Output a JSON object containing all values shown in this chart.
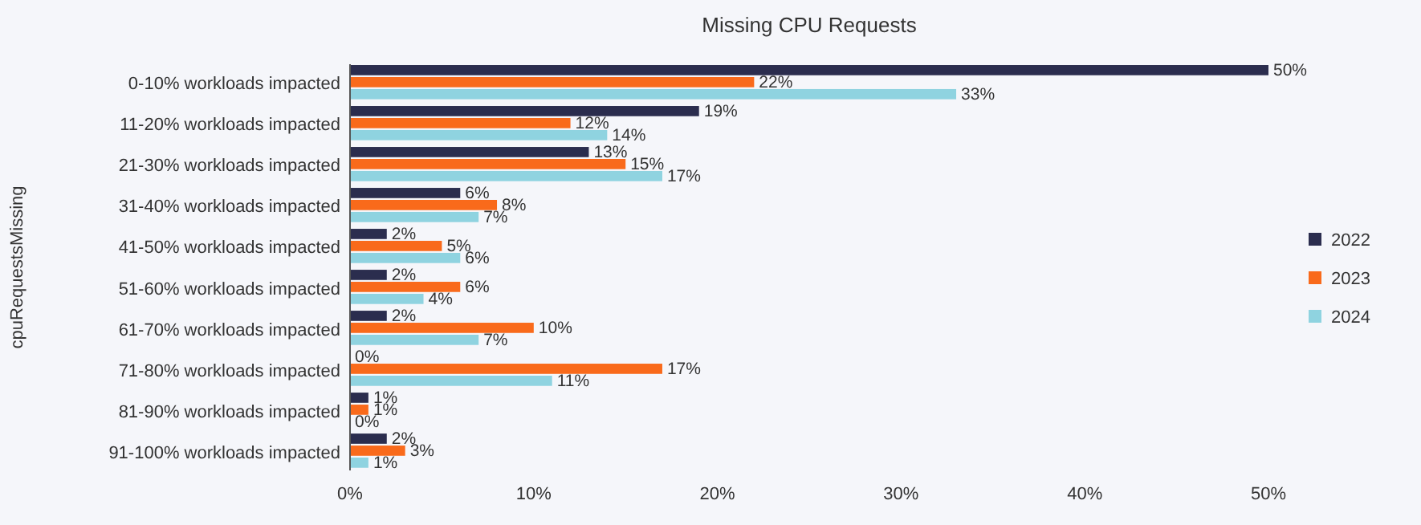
{
  "chart_data": {
    "type": "bar",
    "orientation": "horizontal",
    "title": "Missing CPU Requests",
    "ylabel": "cpuRequestsMissing",
    "categories": [
      "0-10% workloads impacted",
      "11-20% workloads impacted",
      "21-30% workloads impacted",
      "31-40% workloads impacted",
      "41-50% workloads impacted",
      "51-60% workloads impacted",
      "61-70% workloads impacted",
      "71-80% workloads impacted",
      "81-90% workloads impacted",
      "91-100% workloads impacted"
    ],
    "series": [
      {
        "name": "2022",
        "color": "#2b2d4e",
        "values": [
          50,
          19,
          13,
          6,
          2,
          2,
          2,
          0,
          1,
          2
        ],
        "value_labels": [
          "50%",
          "19%",
          "13%",
          "6%",
          "2%",
          "2%",
          "2%",
          "0%",
          "1%",
          "2%"
        ]
      },
      {
        "name": "2023",
        "color": "#f96a1b",
        "values": [
          22,
          12,
          15,
          8,
          5,
          6,
          10,
          17,
          1,
          3
        ],
        "value_labels": [
          "22%",
          "12%",
          "15%",
          "8%",
          "5%",
          "6%",
          "10%",
          "17%",
          "1%",
          "3%"
        ]
      },
      {
        "name": "2024",
        "color": "#8fd3e0",
        "values": [
          33,
          14,
          17,
          7,
          6,
          4,
          7,
          11,
          0,
          1
        ],
        "value_labels": [
          "33%",
          "14%",
          "17%",
          "7%",
          "6%",
          "4%",
          "7%",
          "11%",
          "0%",
          "1%"
        ]
      }
    ],
    "xlim": [
      0,
      50
    ],
    "xticks": [
      {
        "value": 0,
        "label": "0%"
      },
      {
        "value": 10,
        "label": "10%"
      },
      {
        "value": 20,
        "label": "20%"
      },
      {
        "value": 30,
        "label": "30%"
      },
      {
        "value": 40,
        "label": "40%"
      },
      {
        "value": 50,
        "label": "50%"
      }
    ],
    "grid": false,
    "legend": "right"
  }
}
